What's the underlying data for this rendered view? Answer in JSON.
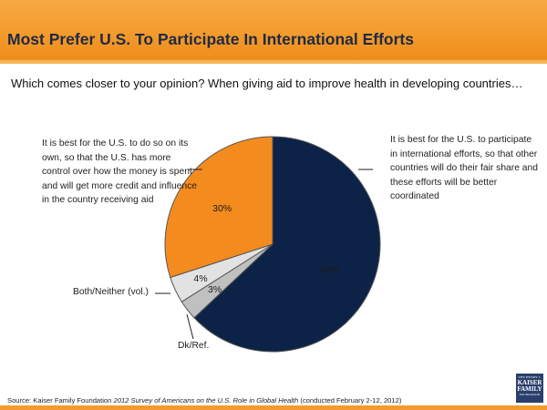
{
  "header": {
    "title": "Most Prefer U.S. To Participate In International Efforts"
  },
  "question": "Which comes closer to your opinion? When giving aid to improve health in developing countries…",
  "chart_data": {
    "type": "pie",
    "title": "Most Prefer U.S. To Participate In International Efforts",
    "slices": [
      {
        "label": "It is best for the U.S. to participate in international efforts, so that other countries will do their fair share and these efforts will be better coordinated",
        "value": 63,
        "value_label": "63%",
        "color": "#0c2347"
      },
      {
        "label": "Dk/Ref.",
        "value": 3,
        "value_label": "3%",
        "color": "#c0c0c0"
      },
      {
        "label": "Both/Neither (vol.)",
        "value": 4,
        "value_label": "4%",
        "color": "#e2e2e2"
      },
      {
        "label": "It is best for the U.S. to do so on its own, so that the U.S. has more control over how the money is spent and will get more credit and influence in the country receiving aid",
        "value": 30,
        "value_label": "30%",
        "color": "#f48b1e"
      }
    ]
  },
  "source": {
    "prefix": "Source: Kaiser Family Foundation ",
    "survey": "2012 Survey of Americans on the U.S. Role in Global Health",
    "suffix": " (conducted February 2-12, 2012)"
  },
  "logo": {
    "line1": "THE HENRY J.",
    "line2": "KAISER",
    "line3": "FAMILY",
    "line4": "FOUNDATION"
  },
  "colors": {
    "accent": "#f39b2c",
    "title_text": "#1f2a44",
    "logo_bg": "#2a3f6b"
  }
}
